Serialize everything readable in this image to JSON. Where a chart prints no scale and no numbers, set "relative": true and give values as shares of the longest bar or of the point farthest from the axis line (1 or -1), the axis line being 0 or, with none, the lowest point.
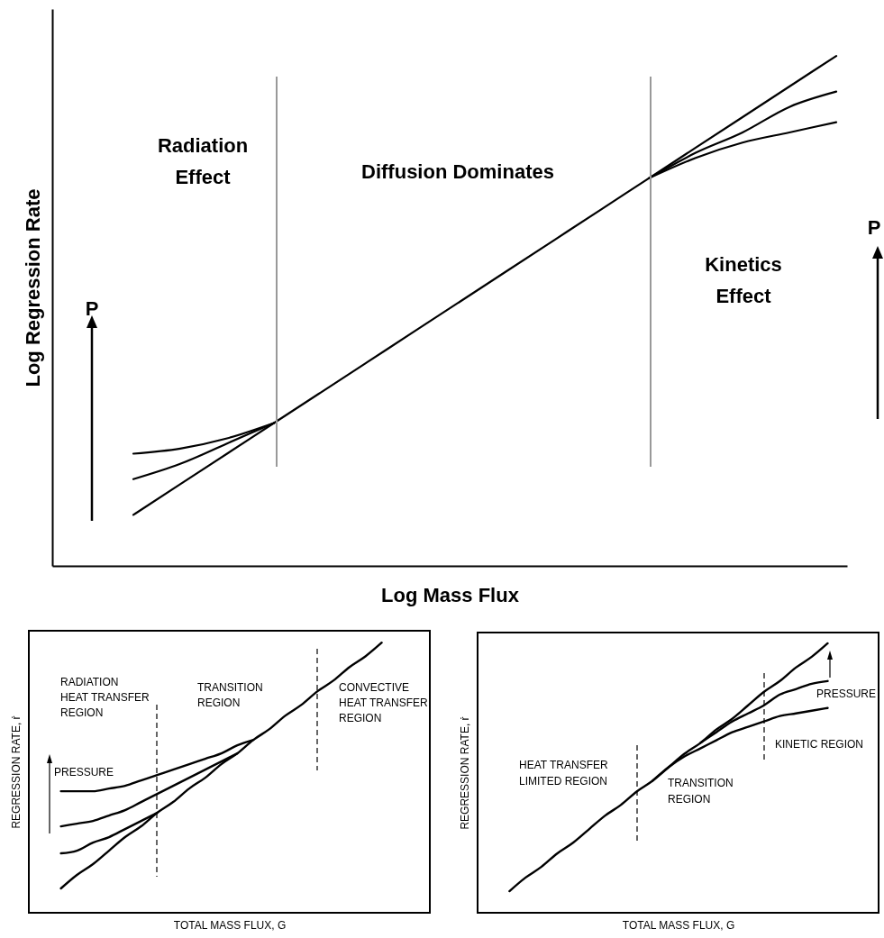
{
  "chart_data": [
    {
      "type": "line",
      "xlabel": "Log Mass Flux",
      "ylabel": "Log Regression Rate",
      "relative": true,
      "categories": [
        null,
        null,
        null,
        null,
        null,
        null,
        null,
        null,
        null,
        null,
        null,
        null,
        null,
        null,
        null,
        null
      ],
      "series": [
        {
          "color": "#000000",
          "values": [
            0.1,
            0.16,
            0.22,
            0.28,
            0.34,
            0.4,
            0.46,
            0.52,
            0.58,
            0.64,
            0.7,
            0.76,
            0.82,
            0.88,
            0.94,
            1.0
          ]
        },
        {
          "color": "#000000",
          "values": [
            0.22,
            0.23,
            0.25,
            0.28,
            null,
            null,
            null,
            null,
            null,
            null,
            null,
            null,
            null,
            null,
            null,
            null
          ]
        },
        {
          "color": "#000000",
          "values": [
            0.17,
            0.2,
            0.24,
            0.28,
            null,
            null,
            null,
            null,
            null,
            null,
            null,
            null,
            null,
            null,
            null,
            null
          ]
        },
        {
          "color": "#000000",
          "values": [
            null,
            null,
            null,
            null,
            null,
            null,
            null,
            null,
            null,
            null,
            null,
            0.76,
            0.81,
            0.85,
            0.9,
            0.93
          ]
        },
        {
          "color": "#000000",
          "values": [
            null,
            null,
            null,
            null,
            null,
            null,
            null,
            null,
            null,
            null,
            null,
            0.76,
            0.8,
            0.83,
            0.85,
            0.87
          ]
        }
      ],
      "annotations": [
        "Radiation Effect",
        "Diffusion Dominates",
        "Kinetics Effect",
        "P",
        "P"
      ]
    },
    {
      "type": "line",
      "xlabel": "TOTAL MASS FLUX, G",
      "ylabel": "REGRESSION RATE, ṙ",
      "relative": true,
      "categories": [
        null,
        null,
        null,
        null,
        null,
        null,
        null,
        null,
        null,
        null,
        null,
        null,
        null,
        null,
        null,
        null,
        null,
        null,
        null,
        null,
        null
      ],
      "series": [
        {
          "color": "#000000",
          "values": [
            0.09,
            0.14,
            0.18,
            0.23,
            0.28,
            0.32,
            0.37,
            0.41,
            0.46,
            0.5,
            0.55,
            0.59,
            0.64,
            0.68,
            0.73,
            0.77,
            0.82,
            0.86,
            0.91,
            0.95,
            1.0
          ]
        },
        {
          "color": "#000000",
          "values": [
            0.45,
            0.45,
            0.45,
            0.46,
            0.47,
            0.49,
            0.51,
            0.53,
            0.55,
            0.57,
            0.59,
            0.62,
            0.64,
            null,
            null,
            null,
            null,
            null,
            null,
            null,
            null
          ]
        },
        {
          "color": "#000000",
          "values": [
            0.32,
            0.33,
            0.34,
            0.36,
            0.38,
            0.41,
            0.44,
            0.47,
            0.5,
            0.53,
            0.56,
            0.59,
            null,
            null,
            null,
            null,
            null,
            null,
            null,
            null,
            null
          ]
        },
        {
          "color": "#000000",
          "values": [
            0.22,
            0.23,
            0.26,
            0.28,
            0.31,
            0.34,
            0.37,
            null,
            null,
            null,
            null,
            null,
            null,
            null,
            null,
            null,
            null,
            null,
            null,
            null,
            null
          ]
        }
      ],
      "annotations": [
        "RADIATION HEAT TRANSFER REGION",
        "TRANSITION REGION",
        "CONVECTIVE HEAT TRANSFER REGION",
        "PRESSURE"
      ]
    },
    {
      "type": "line",
      "xlabel": "TOTAL MASS FLUX, G",
      "ylabel": "REGRESSION RATE, ṙ",
      "relative": true,
      "categories": [
        null,
        null,
        null,
        null,
        null,
        null,
        null,
        null,
        null,
        null,
        null,
        null,
        null,
        null,
        null,
        null,
        null,
        null,
        null,
        null,
        null
      ],
      "series": [
        {
          "color": "#000000",
          "values": [
            0.08,
            0.13,
            0.17,
            0.22,
            0.26,
            0.31,
            0.36,
            0.4,
            0.45,
            0.49,
            0.54,
            0.59,
            0.63,
            0.68,
            0.72,
            0.77,
            0.82,
            0.86,
            0.91,
            0.95,
            1.0
          ]
        },
        {
          "color": "#000000",
          "values": [
            null,
            null,
            null,
            null,
            null,
            null,
            null,
            null,
            null,
            null,
            null,
            null,
            0.63,
            0.67,
            0.71,
            0.74,
            0.77,
            0.81,
            0.83,
            0.85,
            0.86
          ]
        },
        {
          "color": "#000000",
          "values": [
            null,
            null,
            null,
            null,
            null,
            null,
            null,
            null,
            null,
            0.49,
            0.54,
            0.58,
            0.61,
            0.64,
            0.67,
            0.69,
            0.71,
            0.73,
            0.74,
            0.75,
            0.76
          ]
        }
      ],
      "annotations": [
        "HEAT TRANSFER LIMITED REGION",
        "TRANSITION REGION",
        "KINETIC REGION",
        "PRESSURE"
      ]
    }
  ]
}
